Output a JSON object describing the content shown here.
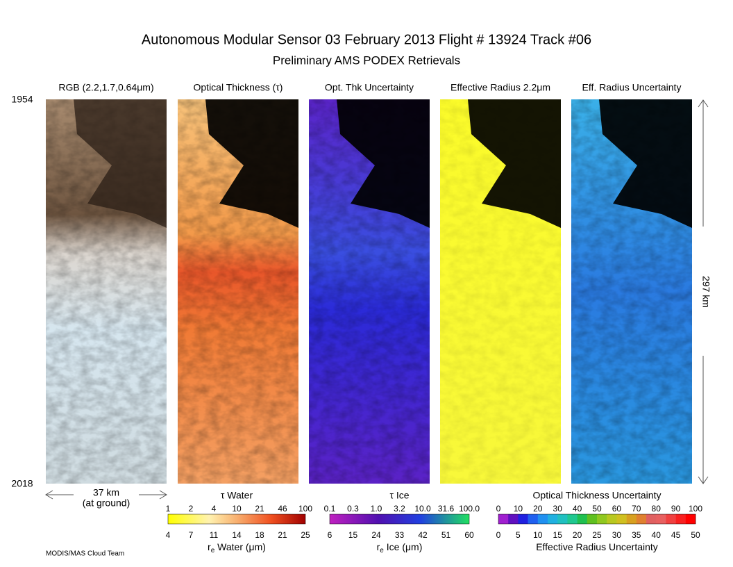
{
  "header": {
    "title": "Autonomous Modular Sensor  03 February 2013  Flight # 13924 Track #06",
    "subtitle": "Preliminary AMS PODEX Retrievals"
  },
  "panels": [
    {
      "label": "RGB (2.2,1.7,0.64μm)"
    },
    {
      "label": "Optical Thickness (τ)"
    },
    {
      "label": "Opt. Thk Uncertainty"
    },
    {
      "label": "Effective Radius 2.2μm"
    },
    {
      "label": "Eff. Radius Uncertainty"
    }
  ],
  "time_start": "1954",
  "time_end": "2018",
  "track_length": "297 km",
  "swath_width": "37 km",
  "swath_note": "(at ground)",
  "colorbars": [
    {
      "top_title": "τ Water",
      "top_ticks": [
        1,
        2,
        4,
        10,
        21,
        46,
        100
      ],
      "bottom_ticks": [
        4,
        7,
        11,
        14,
        18,
        21,
        25
      ],
      "bottom_title": {
        "symbol": "r",
        "subscript": "e",
        "text": " Water (μm)"
      }
    },
    {
      "top_title": "τ Ice",
      "top_ticks": [
        "0.1",
        "0.3",
        "1.0",
        "3.2",
        "10.0",
        "31.6",
        "100.0"
      ],
      "bottom_ticks": [
        6,
        15,
        24,
        33,
        42,
        51,
        60
      ],
      "bottom_title": {
        "symbol": "r",
        "subscript": "e",
        "text": " Ice (μm)"
      }
    },
    {
      "top_title": "Optical Thickness Uncertainty",
      "top_ticks": [
        0,
        10,
        20,
        30,
        40,
        50,
        60,
        70,
        80,
        90,
        100
      ],
      "bottom_ticks": [
        0,
        5,
        10,
        15,
        20,
        25,
        30,
        35,
        40,
        45,
        50
      ],
      "bottom_title": {
        "text": "Effective Radius Uncertainty"
      }
    }
  ],
  "credit": "MODIS/MAS Cloud Team"
}
